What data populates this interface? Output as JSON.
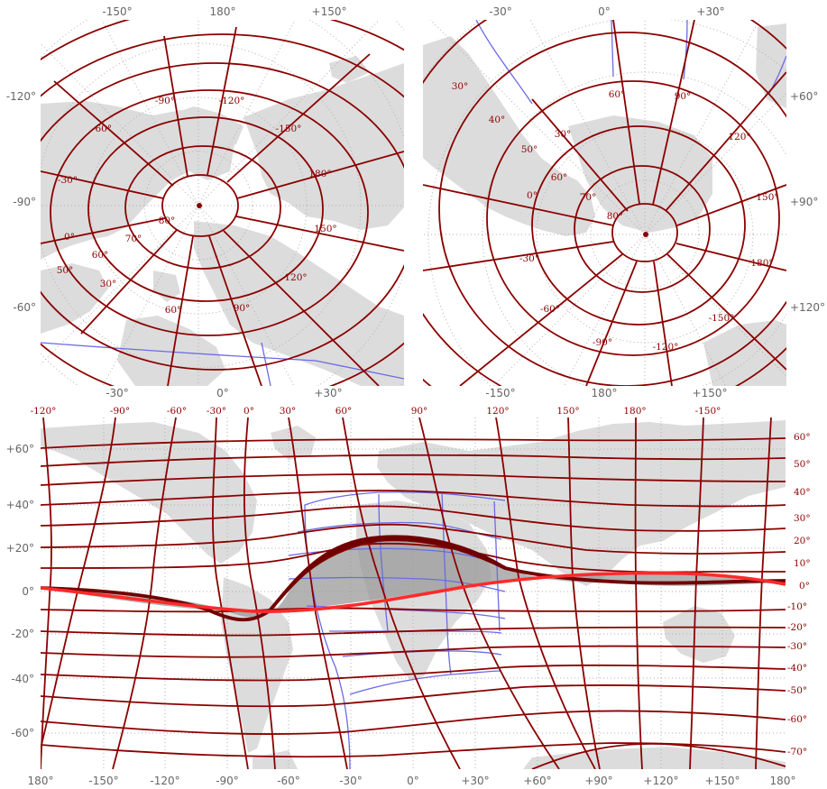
{
  "colors": {
    "land": "#dcdcdc",
    "coordinate_grid": "#8b0000",
    "footprint": "#6b6be6",
    "sky_grid": "#b0b0b0",
    "galactic_plane": "#ff2a2a",
    "region_fill": "#9a9a9a"
  },
  "north_panel": {
    "top_ticks": [
      "-150°",
      "180°",
      "+150°"
    ],
    "bottom_ticks": [
      "-30°",
      "0°",
      "+30°"
    ],
    "left_ticks": [
      "-120°",
      "-90°",
      "-60°"
    ],
    "lon_labels": [
      "-90°",
      "-120°",
      "-60°",
      "-150°",
      "-30°",
      "180°",
      "0°",
      "150°",
      "30°",
      "120°",
      "60°",
      "90°"
    ],
    "lat_labels": [
      "80°",
      "70°",
      "60°",
      "50°"
    ]
  },
  "south_panel": {
    "top_ticks": [
      "-30°",
      "0°",
      "+30°"
    ],
    "bottom_ticks": [
      "-150°",
      "180°",
      "+150°"
    ],
    "right_ticks": [
      "+60°",
      "+90°",
      "+120°"
    ],
    "lon_labels": [
      "90°",
      "60°",
      "120°",
      "30°",
      "150°",
      "0°",
      "180°",
      "-30°",
      "-150°",
      "-60°",
      "-120°",
      "-90°"
    ],
    "lat_labels": [
      "30°",
      "40°",
      "50°",
      "60°",
      "70°",
      "80°"
    ],
    "edge_labels": [
      "30°",
      "30°"
    ]
  },
  "main_panel": {
    "top_labels": [
      "-120°",
      "-90°",
      "-60°",
      "-30°",
      "0°",
      "30°",
      "60°",
      "90°",
      "120°",
      "150°",
      "180°",
      "-150°"
    ],
    "right_labels": [
      "60°",
      "50°",
      "40°",
      "30°",
      "20°",
      "10°",
      "0°",
      "-10°",
      "-20°",
      "-30°",
      "-40°",
      "-50°",
      "-60°",
      "-70°"
    ],
    "left_ticks": [
      "+60°",
      "+40°",
      "+20°",
      "0°",
      "-20°",
      "-40°",
      "-60°"
    ],
    "bottom_ticks": [
      "180°",
      "-150°",
      "-120°",
      "-90°",
      "-60°",
      "-30°",
      "0°",
      "+30°",
      "+60°",
      "+90°",
      "+120°",
      "+150°",
      "180°"
    ]
  }
}
